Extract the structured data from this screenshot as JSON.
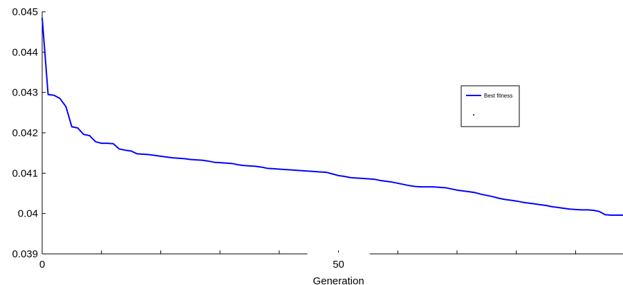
{
  "chart_data": {
    "type": "line",
    "title": "",
    "xlabel": "Generation",
    "ylabel": "",
    "xlim": [
      0,
      98
    ],
    "ylim": [
      0.039,
      0.045
    ],
    "x_ticks": [
      0,
      10,
      20,
      30,
      40,
      50,
      60,
      70,
      80,
      90
    ],
    "x_tick_labels": [
      "0",
      "",
      "",
      "",
      "",
      "50",
      "",
      "",
      "",
      ""
    ],
    "y_ticks": [
      0.039,
      0.04,
      0.041,
      0.042,
      0.043,
      0.044,
      0.045
    ],
    "y_tick_labels": [
      "0.039",
      "0.04",
      "0.041",
      "0.042",
      "0.043",
      "0.044",
      "0.045"
    ],
    "grid": false,
    "legend_position": "right",
    "series": [
      {
        "name": "Best fitness",
        "color": "#0000ff",
        "x": [
          0,
          1,
          2,
          3,
          4,
          5,
          6,
          7,
          8,
          9,
          10,
          11,
          12,
          13,
          14,
          15,
          16,
          17,
          18,
          19,
          20,
          21,
          22,
          23,
          24,
          25,
          26,
          27,
          28,
          29,
          30,
          31,
          32,
          33,
          34,
          35,
          36,
          37,
          38,
          39,
          40,
          41,
          42,
          43,
          44,
          45,
          46,
          47,
          48,
          49,
          50,
          51,
          52,
          53,
          54,
          55,
          56,
          57,
          58,
          59,
          60,
          61,
          62,
          63,
          64,
          65,
          66,
          67,
          68,
          69,
          70,
          71,
          72,
          73,
          74,
          75,
          76,
          77,
          78,
          79,
          80,
          81,
          82,
          83,
          84,
          85,
          86,
          87,
          88,
          89,
          90,
          91,
          92,
          93,
          94,
          95,
          96,
          97,
          98
        ],
        "y": [
          0.04485,
          0.04295,
          0.04293,
          0.04285,
          0.04265,
          0.04215,
          0.04212,
          0.04196,
          0.04193,
          0.04178,
          0.04174,
          0.04174,
          0.04173,
          0.0416,
          0.04157,
          0.04155,
          0.04148,
          0.04147,
          0.04146,
          0.04144,
          0.04142,
          0.0414,
          0.04138,
          0.04137,
          0.04136,
          0.04134,
          0.04133,
          0.04132,
          0.0413,
          0.04127,
          0.04126,
          0.04125,
          0.04124,
          0.04121,
          0.04119,
          0.04118,
          0.04117,
          0.04115,
          0.04112,
          0.04111,
          0.0411,
          0.04109,
          0.04108,
          0.04107,
          0.04106,
          0.04105,
          0.04104,
          0.04103,
          0.04102,
          0.04098,
          0.04094,
          0.04092,
          0.04089,
          0.04088,
          0.04087,
          0.04086,
          0.04085,
          0.04082,
          0.0408,
          0.04078,
          0.04075,
          0.04072,
          0.04069,
          0.04067,
          0.04066,
          0.04066,
          0.04066,
          0.04065,
          0.04064,
          0.04061,
          0.04058,
          0.04056,
          0.04054,
          0.04052,
          0.04048,
          0.04045,
          0.04042,
          0.04038,
          0.04035,
          0.04033,
          0.04031,
          0.04028,
          0.04026,
          0.04024,
          0.04022,
          0.0402,
          0.04017,
          0.04015,
          0.04013,
          0.04011,
          0.0401,
          0.04009,
          0.04009,
          0.04008,
          0.04005,
          0.03997,
          0.03996,
          0.03996,
          0.03996
        ]
      }
    ]
  }
}
